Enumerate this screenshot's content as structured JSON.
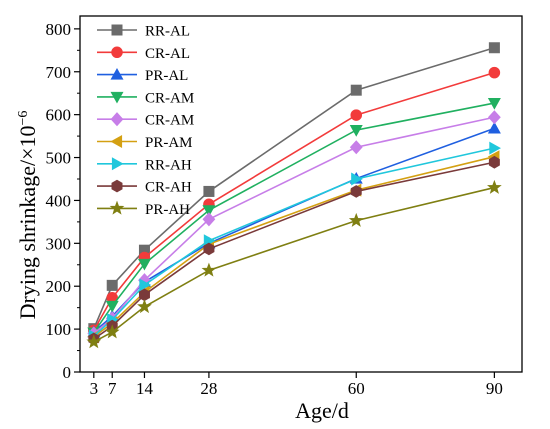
{
  "chart_data": {
    "type": "line",
    "xlabel": "Age/d",
    "ylabel": "Drying shrinkage/×10",
    "ylabel_sup": "−6",
    "x": [
      3,
      7,
      14,
      28,
      60,
      90
    ],
    "x_ticks": [
      3,
      7,
      14,
      28,
      60,
      90
    ],
    "x_tick_labels": [
      "3",
      "7",
      "14",
      "28",
      "60",
      "90"
    ],
    "xlim": [
      0,
      96
    ],
    "ylim": [
      0,
      830
    ],
    "y_ticks": [
      0,
      100,
      200,
      300,
      400,
      500,
      600,
      700,
      800
    ],
    "y_tick_labels": [
      "0",
      "100",
      "200",
      "300",
      "400",
      "500",
      "600",
      "700",
      "800"
    ],
    "grid": false,
    "legend_position": "top-left",
    "series": [
      {
        "name": "RR-AL",
        "color": "#6b6b6b",
        "marker": "square",
        "values": [
          101,
          202,
          284,
          421,
          657,
          756
        ]
      },
      {
        "name": "CR-AL",
        "color": "#f23b3b",
        "marker": "circle",
        "values": [
          97,
          173,
          267,
          391,
          599,
          698
        ]
      },
      {
        "name": "PR-AL",
        "color": "#1f5fe0",
        "marker": "triangle-up",
        "values": [
          93,
          130,
          210,
          300,
          451,
          568
        ]
      },
      {
        "name": "CR-AM",
        "color": "#20b060",
        "marker": "triangle-down",
        "values": [
          92,
          154,
          252,
          377,
          564,
          627
        ]
      },
      {
        "name": "CR-AM",
        "color": "#c77ee8",
        "marker": "diamond",
        "values": [
          90,
          125,
          214,
          356,
          524,
          594
        ]
      },
      {
        "name": "PR-AM",
        "color": "#d4a012",
        "marker": "triangle-left",
        "values": [
          82,
          114,
          186,
          298,
          424,
          502
        ]
      },
      {
        "name": "RR-AH",
        "color": "#20c7dc",
        "marker": "triangle-right",
        "values": [
          84,
          122,
          203,
          306,
          450,
          522
        ]
      },
      {
        "name": "CR-AH",
        "color": "#7a3a3a",
        "marker": "hexagon",
        "values": [
          77,
          107,
          180,
          287,
          421,
          489
        ]
      },
      {
        "name": "PR-AH",
        "color": "#7f7f12",
        "marker": "star",
        "values": [
          70,
          93,
          152,
          237,
          353,
          430
        ]
      }
    ]
  }
}
